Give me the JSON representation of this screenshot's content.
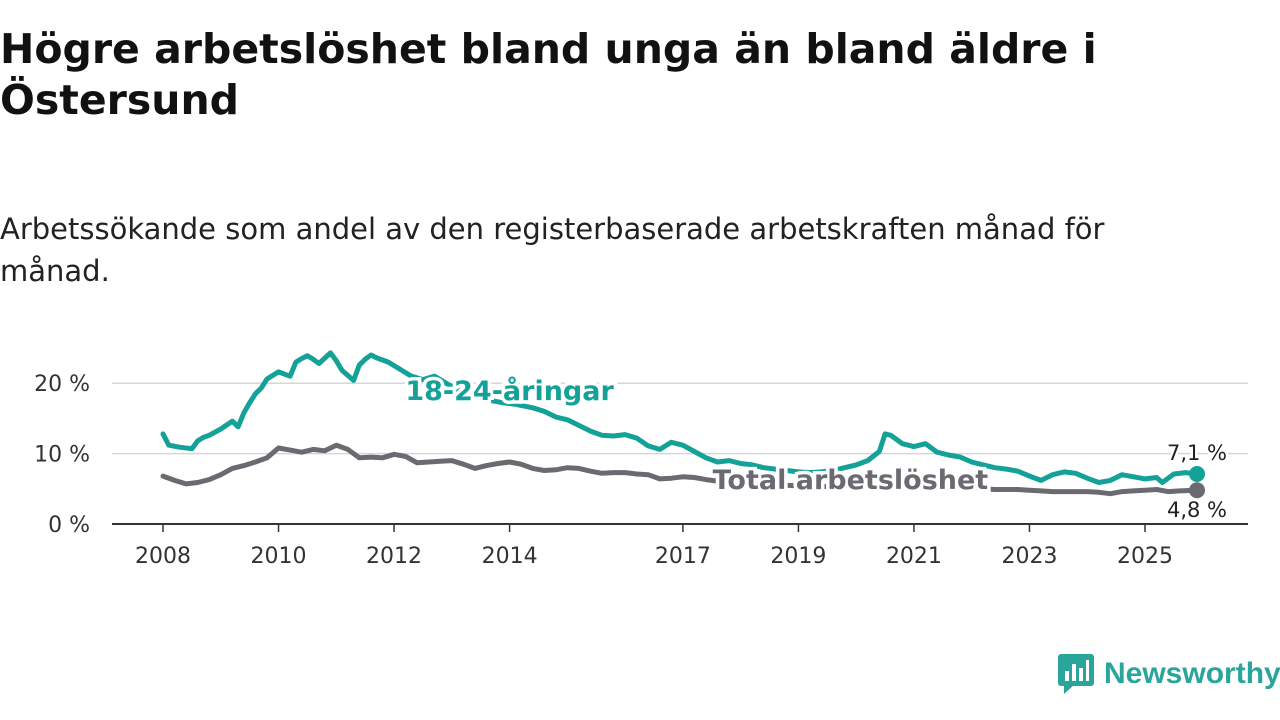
{
  "title": "Högre arbetslöshet bland unga än bland äldre i Östersund",
  "subtitle": "Arbetssökande som andel av den registerbaserade arbetskraften månad för månad.",
  "brand": {
    "name": "Newsworthy",
    "icon": "newsworthy-logo-icon",
    "color": "#2aa59b"
  },
  "chart_data": {
    "type": "line",
    "title": "Högre arbetslöshet bland unga än bland äldre i Östersund",
    "xlabel": "",
    "ylabel": "",
    "ylim": [
      0,
      25
    ],
    "xlim": [
      2008.0,
      2025.9
    ],
    "grid": true,
    "y_ticks": [
      {
        "value": 0,
        "label": "0 %"
      },
      {
        "value": 10,
        "label": "10 %"
      },
      {
        "value": 20,
        "label": "20 %"
      }
    ],
    "x_ticks": [
      {
        "value": 2008,
        "label": "2008"
      },
      {
        "value": 2010,
        "label": "2010"
      },
      {
        "value": 2012,
        "label": "2012"
      },
      {
        "value": 2014,
        "label": "2014"
      },
      {
        "value": 2017,
        "label": "2017"
      },
      {
        "value": 2019,
        "label": "2019"
      },
      {
        "value": 2021,
        "label": "2021"
      },
      {
        "value": 2023,
        "label": "2023"
      },
      {
        "value": 2025,
        "label": "2025"
      }
    ],
    "series": [
      {
        "name": "18-24-åringar",
        "color": "#14a197",
        "end_label": "7,1 %",
        "x": [
          2008.0,
          2008.1,
          2008.3,
          2008.5,
          2008.6,
          2008.7,
          2008.8,
          2009.0,
          2009.2,
          2009.3,
          2009.4,
          2009.5,
          2009.6,
          2009.7,
          2009.8,
          2010.0,
          2010.2,
          2010.3,
          2010.4,
          2010.5,
          2010.6,
          2010.7,
          2010.9,
          2011.0,
          2011.1,
          2011.3,
          2011.4,
          2011.5,
          2011.6,
          2011.7,
          2011.9,
          2012.1,
          2012.3,
          2012.5,
          2012.7,
          2012.9,
          2013.1,
          2013.3,
          2013.5,
          2013.7,
          2013.9,
          2014.1,
          2014.4,
          2014.6,
          2014.8,
          2015.0,
          2015.2,
          2015.4,
          2015.6,
          2015.8,
          2016.0,
          2016.2,
          2016.4,
          2016.6,
          2016.8,
          2017.0,
          2017.2,
          2017.4,
          2017.6,
          2017.8,
          2018.0,
          2018.2,
          2018.4,
          2018.6,
          2018.8,
          2019.0,
          2019.2,
          2019.4,
          2019.6,
          2019.8,
          2020.0,
          2020.2,
          2020.4,
          2020.5,
          2020.6,
          2020.8,
          2021.0,
          2021.2,
          2021.4,
          2021.6,
          2021.8,
          2022.0,
          2022.2,
          2022.4,
          2022.6,
          2022.8,
          2023.0,
          2023.2,
          2023.4,
          2023.6,
          2023.8,
          2024.0,
          2024.2,
          2024.4,
          2024.6,
          2024.8,
          2025.0,
          2025.2,
          2025.3,
          2025.5,
          2025.7,
          2025.9
        ],
        "values": [
          12.8,
          11.2,
          10.9,
          10.7,
          11.8,
          12.3,
          12.6,
          13.5,
          14.6,
          13.8,
          15.8,
          17.2,
          18.5,
          19.3,
          20.6,
          21.6,
          21.0,
          23.0,
          23.5,
          23.9,
          23.4,
          22.8,
          24.3,
          23.2,
          21.8,
          20.4,
          22.6,
          23.4,
          24.0,
          23.6,
          23.0,
          22.0,
          21.0,
          20.5,
          21.0,
          20.0,
          19.0,
          18.5,
          18.0,
          17.5,
          17.2,
          17.0,
          16.5,
          16.0,
          15.2,
          14.8,
          14.0,
          13.2,
          12.6,
          12.5,
          12.7,
          12.2,
          11.1,
          10.6,
          11.6,
          11.2,
          10.3,
          9.4,
          8.8,
          9.0,
          8.6,
          8.4,
          8.0,
          7.8,
          7.6,
          7.4,
          7.3,
          7.4,
          7.6,
          8.0,
          8.4,
          9.0,
          10.3,
          12.8,
          12.6,
          11.4,
          11.0,
          11.4,
          10.2,
          9.8,
          9.5,
          8.8,
          8.4,
          8.0,
          7.8,
          7.5,
          6.8,
          6.2,
          7.0,
          7.4,
          7.2,
          6.5,
          5.9,
          6.2,
          7.0,
          6.7,
          6.4,
          6.6,
          5.9,
          7.1,
          7.3,
          7.1
        ]
      },
      {
        "name": "Total arbetslöshet",
        "color": "#6b6a70",
        "end_label": "4,8 %",
        "x": [
          2008.0,
          2008.2,
          2008.4,
          2008.6,
          2008.8,
          2009.0,
          2009.2,
          2009.4,
          2009.6,
          2009.8,
          2010.0,
          2010.2,
          2010.4,
          2010.6,
          2010.8,
          2011.0,
          2011.2,
          2011.4,
          2011.6,
          2011.8,
          2012.0,
          2012.2,
          2012.4,
          2012.6,
          2012.8,
          2013.0,
          2013.2,
          2013.4,
          2013.6,
          2013.8,
          2014.0,
          2014.2,
          2014.4,
          2014.6,
          2014.8,
          2015.0,
          2015.2,
          2015.4,
          2015.6,
          2015.8,
          2016.0,
          2016.2,
          2016.4,
          2016.6,
          2016.8,
          2017.0,
          2017.2,
          2017.4,
          2017.6,
          2017.8,
          2018.0,
          2018.2,
          2018.4,
          2018.6,
          2018.8,
          2019.0,
          2019.2,
          2019.4,
          2019.6,
          2019.8,
          2020.0,
          2020.2,
          2020.4,
          2020.6,
          2020.8,
          2021.0,
          2021.2,
          2021.4,
          2021.6,
          2021.8,
          2022.0,
          2022.2,
          2022.4,
          2022.6,
          2022.8,
          2023.0,
          2023.2,
          2023.4,
          2023.6,
          2023.8,
          2024.0,
          2024.2,
          2024.4,
          2024.6,
          2024.8,
          2025.0,
          2025.2,
          2025.4,
          2025.6,
          2025.9
        ],
        "values": [
          6.8,
          6.2,
          5.7,
          5.9,
          6.3,
          7.0,
          7.9,
          8.3,
          8.8,
          9.4,
          10.8,
          10.5,
          10.2,
          10.6,
          10.4,
          11.2,
          10.6,
          9.4,
          9.5,
          9.4,
          9.9,
          9.6,
          8.7,
          8.8,
          8.9,
          9.0,
          8.5,
          7.9,
          8.3,
          8.6,
          8.8,
          8.5,
          7.9,
          7.6,
          7.7,
          8.0,
          7.9,
          7.5,
          7.2,
          7.3,
          7.3,
          7.1,
          7.0,
          6.4,
          6.5,
          6.7,
          6.6,
          6.3,
          6.1,
          6.0,
          5.9,
          5.8,
          5.7,
          5.6,
          5.5,
          5.4,
          5.3,
          5.3,
          5.4,
          5.6,
          5.9,
          6.2,
          6.4,
          6.2,
          5.9,
          5.8,
          5.6,
          5.4,
          5.3,
          5.2,
          5.1,
          5.0,
          4.9,
          4.9,
          4.9,
          4.8,
          4.7,
          4.6,
          4.6,
          4.6,
          4.6,
          4.5,
          4.3,
          4.6,
          4.7,
          4.8,
          4.9,
          4.6,
          4.7,
          4.8
        ]
      }
    ],
    "annotations": [
      {
        "text": "18-24-åringar",
        "series": "18-24-åringar",
        "x": 2014.0,
        "y": 19.0
      },
      {
        "text": "Total arbetslöshet",
        "series": "Total arbetslöshet",
        "x": 2019.9,
        "y": 6.4
      }
    ]
  }
}
